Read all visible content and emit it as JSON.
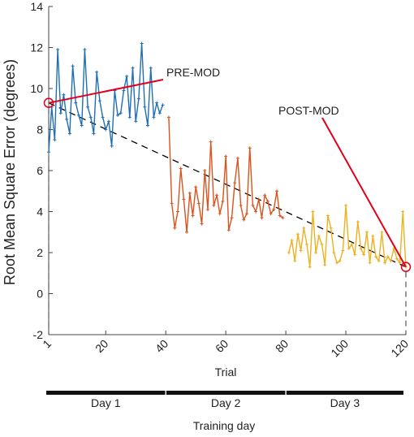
{
  "chart_data": {
    "type": "line",
    "title": "",
    "xlabel": "Trial",
    "ylabel": "Root Mean Square Error (degrees)",
    "xlim": [
      1,
      120
    ],
    "ylim": [
      -2,
      14
    ],
    "x_ticks": [
      {
        "value": 1,
        "label": "1"
      },
      {
        "value": 20,
        "label": "20"
      },
      {
        "value": 40,
        "label": "40"
      },
      {
        "value": 60,
        "label": "60"
      },
      {
        "value": 80,
        "label": "80"
      },
      {
        "value": 100,
        "label": "100"
      },
      {
        "value": 120,
        "label": "120"
      }
    ],
    "y_ticks": [
      {
        "value": -2,
        "label": "-2"
      },
      {
        "value": 0,
        "label": "0"
      },
      {
        "value": 2,
        "label": "2"
      },
      {
        "value": 4,
        "label": "4"
      },
      {
        "value": 6,
        "label": "6"
      },
      {
        "value": 8,
        "label": "8"
      },
      {
        "value": 10,
        "label": "10"
      },
      {
        "value": 12,
        "label": "12"
      },
      {
        "value": 14,
        "label": "14"
      }
    ],
    "grid": false,
    "series": [
      {
        "color": "#1f6fb2",
        "x_start": 1,
        "values": [
          6.9,
          9.1,
          7.5,
          11.9,
          8.8,
          9.7,
          8.5,
          7.8,
          11.1,
          9.3,
          8.7,
          8.2,
          11.9,
          9.1,
          8.6,
          7.8,
          10.8,
          9.4,
          8.6,
          8.0,
          8.4,
          7.2,
          9.9,
          8.7,
          8.8,
          9.9,
          10.6,
          8.6,
          11.0,
          8.4,
          9.5,
          12.2,
          9.1,
          8.2,
          11.0,
          8.6,
          9.3,
          8.8,
          9.2
        ]
      },
      {
        "color": "#d9531e",
        "x_start": 41,
        "values": [
          8.6,
          4.4,
          3.2,
          4.0,
          6.1,
          4.6,
          3.0,
          4.9,
          3.8,
          5.2,
          4.4,
          3.4,
          6.0,
          4.1,
          7.4,
          4.3,
          4.8,
          3.9,
          4.5,
          6.7,
          3.1,
          3.7,
          5.4,
          6.6,
          4.3,
          3.6,
          3.9,
          7.1,
          4.3,
          4.0,
          4.6,
          3.7,
          4.8,
          4.5,
          3.9,
          4.1,
          5.0,
          3.8,
          3.7
        ]
      },
      {
        "color": "#edb120",
        "x_start": 81,
        "values": [
          2.0,
          2.6,
          1.6,
          2.9,
          2.1,
          3.2,
          2.4,
          1.3,
          4.0,
          2.0,
          2.8,
          2.4,
          1.4,
          3.8,
          3.2,
          2.0,
          1.5,
          1.6,
          2.1,
          4.3,
          2.2,
          2.4,
          1.9,
          3.5,
          2.2,
          1.9,
          3.0,
          1.5,
          2.8,
          1.8,
          1.6,
          3.0,
          1.5,
          1.8,
          1.6,
          2.2,
          1.7,
          1.5,
          4.0,
          1.3
        ]
      }
    ],
    "trend_line": {
      "x": [
        1,
        120
      ],
      "y": [
        9.3,
        1.3
      ],
      "color": "#000000",
      "style": "dashed"
    },
    "annotations": [
      {
        "text": "PRE-MOD",
        "target": {
          "x": 1,
          "y": 9.3
        },
        "color": "#e3001b"
      },
      {
        "text": "POST-MOD",
        "target": {
          "x": 120,
          "y": 1.3
        },
        "color": "#e3001b"
      }
    ],
    "training_days": {
      "label": "Training day",
      "days": [
        {
          "label": "Day 1",
          "from": 1,
          "to": 39
        },
        {
          "label": "Day 2",
          "from": 41,
          "to": 79
        },
        {
          "label": "Day 3",
          "from": 81,
          "to": 120
        }
      ]
    }
  }
}
